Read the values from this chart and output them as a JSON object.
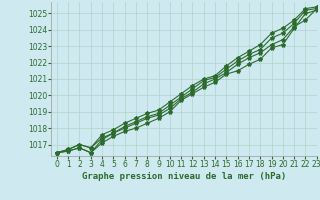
{
  "title": "Graphe pression niveau de la mer (hPa)",
  "bg_color": "#cee9f0",
  "plot_bg_color": "#cee9f0",
  "grid_color": "#b0d4c8",
  "line_color": "#2d6a2d",
  "xlim": [
    -0.5,
    23
  ],
  "ylim": [
    1016.3,
    1025.7
  ],
  "yticks": [
    1017,
    1018,
    1019,
    1020,
    1021,
    1022,
    1023,
    1024,
    1025
  ],
  "xticks": [
    0,
    1,
    2,
    3,
    4,
    5,
    6,
    7,
    8,
    9,
    10,
    11,
    12,
    13,
    14,
    15,
    16,
    17,
    18,
    19,
    20,
    21,
    22,
    23
  ],
  "series": [
    [
      1016.5,
      1016.6,
      1016.8,
      1016.5,
      1017.1,
      1017.5,
      1017.8,
      1018.0,
      1018.3,
      1018.6,
      1019.0,
      1019.7,
      1020.1,
      1020.5,
      1020.8,
      1021.3,
      1021.5,
      1021.9,
      1022.2,
      1022.9,
      1023.1,
      1024.1,
      1025.0,
      1025.2
    ],
    [
      1016.5,
      1016.6,
      1016.8,
      1016.5,
      1017.3,
      1017.7,
      1018.1,
      1018.4,
      1018.7,
      1018.9,
      1019.4,
      1019.9,
      1020.4,
      1020.9,
      1021.1,
      1021.6,
      1022.1,
      1022.5,
      1022.8,
      1023.5,
      1023.8,
      1024.4,
      1025.2,
      1025.3
    ],
    [
      1016.5,
      1016.7,
      1017.0,
      1016.8,
      1017.4,
      1017.7,
      1018.0,
      1018.3,
      1018.6,
      1018.8,
      1019.2,
      1019.8,
      1020.2,
      1020.7,
      1021.0,
      1021.4,
      1021.9,
      1022.3,
      1022.6,
      1023.1,
      1023.4,
      1024.2,
      1024.6,
      1025.3
    ],
    [
      1016.5,
      1016.7,
      1017.0,
      1016.8,
      1017.6,
      1017.9,
      1018.3,
      1018.6,
      1018.9,
      1019.1,
      1019.6,
      1020.1,
      1020.6,
      1021.0,
      1021.2,
      1021.8,
      1022.3,
      1022.7,
      1023.1,
      1023.8,
      1024.1,
      1024.6,
      1025.3,
      1025.4
    ]
  ]
}
